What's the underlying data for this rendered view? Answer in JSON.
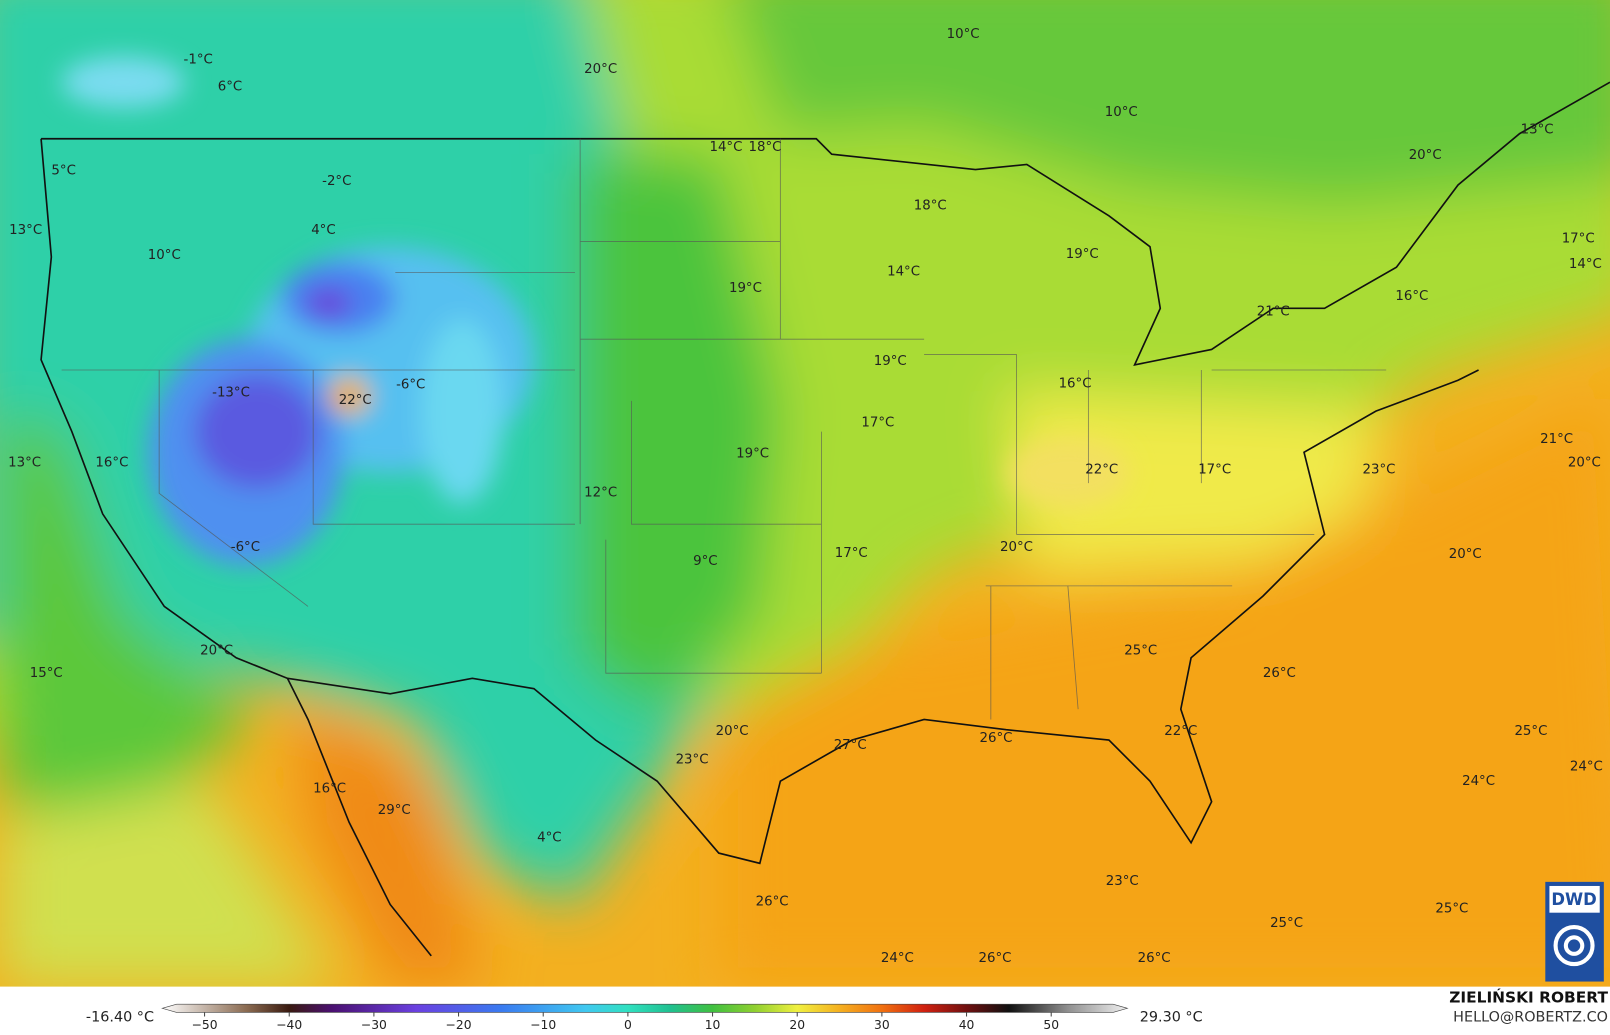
{
  "map": {
    "labels": [
      "-1°C",
      "6°C",
      "20°C",
      "10°C",
      "10°C",
      "13°C",
      "20°C",
      "5°C",
      "-2°C",
      "14°C",
      "18°C",
      "18°C",
      "13°C",
      "4°C",
      "10°C",
      "17°C",
      "14°C",
      "19°C",
      "19°C",
      "14°C",
      "21°C",
      "16°C",
      "19°C",
      "-13°C",
      "22°C",
      "-6°C",
      "16°C",
      "17°C",
      "21°C",
      "20°C",
      "13°C",
      "16°C",
      "19°C",
      "22°C",
      "17°C",
      "23°C",
      "12°C",
      "-6°C",
      "20°C",
      "17°C",
      "9°C",
      "20°C",
      "20°C",
      "15°C",
      "25°C",
      "26°C",
      "20°C",
      "27°C",
      "26°C",
      "22°C",
      "25°C",
      "23°C",
      "24°C",
      "24°C",
      "16°C",
      "29°C",
      "4°C",
      "23°C",
      "26°C",
      "25°C",
      "25°C",
      "24°C",
      "26°C",
      "26°C"
    ]
  },
  "colorbar": {
    "min_label": "-16.40 °C",
    "max_label": "29.30 °C",
    "lim": [
      -55,
      59
    ],
    "ticks": [
      {
        "value": -50,
        "label": "−50"
      },
      {
        "value": -40,
        "label": "−40"
      },
      {
        "value": -30,
        "label": "−30"
      },
      {
        "value": -20,
        "label": "−20"
      },
      {
        "value": -10,
        "label": "−10"
      },
      0,
      10,
      20,
      30,
      40,
      50
    ]
  },
  "credit": {
    "name": "ZIELIŃSKI ROBERT",
    "email": "HELLO@ROBERTZ.CO"
  },
  "logo": "DWD"
}
